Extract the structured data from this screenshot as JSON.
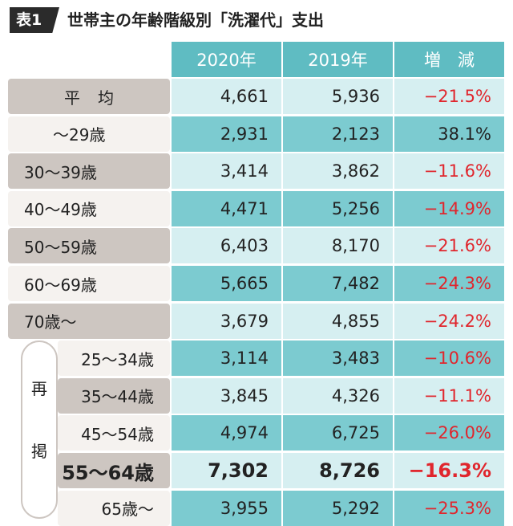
{
  "title": {
    "badge": "表1",
    "text": "世帯主の年齢階級別「洗濯代」支出"
  },
  "headers": [
    "2020年",
    "2019年",
    "増　減"
  ],
  "bracket_chars": [
    "再",
    "掲"
  ],
  "chart_data": {
    "type": "table",
    "title": "世帯主の年齢階級別「洗濯代」支出",
    "columns": [
      "2020年",
      "2019年",
      "増　減"
    ],
    "rows": [
      {
        "label": "平均",
        "v2020": "4,661",
        "v2019": "5,936",
        "change": "−21.5%"
      },
      {
        "label": "～29歳",
        "v2020": "2,931",
        "v2019": "2,123",
        "change": "38.1%"
      },
      {
        "label": "30～39歳",
        "v2020": "3,414",
        "v2019": "3,862",
        "change": "−11.6%"
      },
      {
        "label": "40～49歳",
        "v2020": "4,471",
        "v2019": "5,256",
        "change": "−14.9%"
      },
      {
        "label": "50～59歳",
        "v2020": "6,403",
        "v2019": "8,170",
        "change": "−21.6%"
      },
      {
        "label": "60～69歳",
        "v2020": "5,665",
        "v2019": "7,482",
        "change": "−24.3%"
      },
      {
        "label": "70歳～",
        "v2020": "3,679",
        "v2019": "4,855",
        "change": "−24.2%"
      },
      {
        "label": "25～34歳",
        "v2020": "3,114",
        "v2019": "3,483",
        "change": "−10.6%"
      },
      {
        "label": "35～44歳",
        "v2020": "3,845",
        "v2019": "4,326",
        "change": "−11.1%"
      },
      {
        "label": "45～54歳",
        "v2020": "4,974",
        "v2019": "6,725",
        "change": "−26.0%"
      },
      {
        "label": "55～64歳",
        "v2020": "7,302",
        "v2019": "8,726",
        "change": "−16.3%"
      },
      {
        "label": "65歳～",
        "v2020": "3,955",
        "v2019": "5,292",
        "change": "−25.3%"
      }
    ],
    "colors": {
      "header": "#5fbcc2",
      "row_light": "#d6eff1",
      "row_dark": "#7ccbd0",
      "negative": "#e0262d",
      "label_tan": "#cdc6c1",
      "label_pale": "#f5f2ef"
    }
  }
}
